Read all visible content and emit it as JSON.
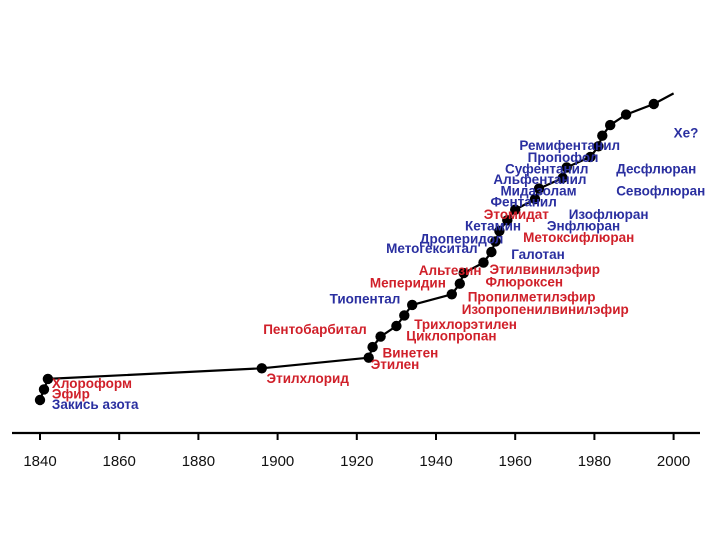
{
  "chart_data": {
    "type": "line",
    "title": "",
    "xlabel": "",
    "ylabel": "",
    "xlim": [
      1835,
      2003
    ],
    "ticks": [
      "1840",
      "1860",
      "1880",
      "1900",
      "1920",
      "1940",
      "1960",
      "1980",
      "2000"
    ],
    "tick_values": [
      1840,
      1860,
      1880,
      1900,
      1920,
      1940,
      1960,
      1980,
      2000
    ],
    "y_axis_shown": false,
    "grid": false,
    "legend": "none",
    "colors": {
      "red": "#d0202a",
      "blue": "#2a2fa0",
      "line": "#000000",
      "axis": "#000000"
    },
    "points": [
      {
        "x": 1840,
        "y": 1
      },
      {
        "x": 1841,
        "y": 2
      },
      {
        "x": 1842,
        "y": 3
      },
      {
        "x": 1896,
        "y": 4
      },
      {
        "x": 1923,
        "y": 5
      },
      {
        "x": 1924,
        "y": 6
      },
      {
        "x": 1926,
        "y": 7
      },
      {
        "x": 1930,
        "y": 8
      },
      {
        "x": 1932,
        "y": 9
      },
      {
        "x": 1934,
        "y": 10
      },
      {
        "x": 1944,
        "y": 11
      },
      {
        "x": 1946,
        "y": 12
      },
      {
        "x": 1947,
        "y": 13
      },
      {
        "x": 1952,
        "y": 14
      },
      {
        "x": 1954,
        "y": 15
      },
      {
        "x": 1955,
        "y": 16
      },
      {
        "x": 1956,
        "y": 17
      },
      {
        "x": 1958,
        "y": 18
      },
      {
        "x": 1960,
        "y": 19
      },
      {
        "x": 1965,
        "y": 20
      },
      {
        "x": 1966,
        "y": 21
      },
      {
        "x": 1972,
        "y": 22
      },
      {
        "x": 1973,
        "y": 23
      },
      {
        "x": 1979,
        "y": 24
      },
      {
        "x": 1981,
        "y": 25
      },
      {
        "x": 1982,
        "y": 26
      },
      {
        "x": 1984,
        "y": 27
      },
      {
        "x": 1988,
        "y": 28
      },
      {
        "x": 1995,
        "y": 29
      }
    ],
    "line_end": {
      "x": 2000,
      "y": 30
    },
    "labels": [
      {
        "text": "Хлороформ",
        "color": "red",
        "x": 1843,
        "y": 2.6,
        "anchor": "start"
      },
      {
        "text": "Эфир",
        "color": "red",
        "x": 1843,
        "y": 1.6,
        "anchor": "start"
      },
      {
        "text": "Закись азота",
        "color": "blue",
        "x": 1843,
        "y": 0.6,
        "anchor": "start"
      },
      {
        "text": "Этилхлорид",
        "color": "red",
        "x": 1918,
        "y": 3.1,
        "anchor": "end"
      },
      {
        "text": "Этилен",
        "color": "red",
        "x": 1923.5,
        "y": 4.4,
        "anchor": "start"
      },
      {
        "text": "Винетен",
        "color": "red",
        "x": 1926.5,
        "y": 5.5,
        "anchor": "start"
      },
      {
        "text": "Пентобарбитал",
        "color": "red",
        "x": 1922.5,
        "y": 7.7,
        "anchor": "end"
      },
      {
        "text": "Циклопропан",
        "color": "red",
        "x": 1932.5,
        "y": 7.1,
        "anchor": "start"
      },
      {
        "text": "Трихлорэтилен",
        "color": "red",
        "x": 1934.5,
        "y": 8.2,
        "anchor": "start"
      },
      {
        "text": "Тиопентал",
        "color": "blue",
        "x": 1931,
        "y": 10.6,
        "anchor": "end"
      },
      {
        "text": "Изопропенилвинилэфир",
        "color": "red",
        "x": 1946.5,
        "y": 9.6,
        "anchor": "start"
      },
      {
        "text": "Пропилметилэфир",
        "color": "red",
        "x": 1948,
        "y": 10.8,
        "anchor": "start"
      },
      {
        "text": "Меперидин",
        "color": "red",
        "x": 1942.5,
        "y": 12.1,
        "anchor": "end"
      },
      {
        "text": "Флюроксен",
        "color": "red",
        "x": 1952.5,
        "y": 12.2,
        "anchor": "start"
      },
      {
        "text": "Альтезин",
        "color": "red",
        "x": 1951.5,
        "y": 13.3,
        "anchor": "end"
      },
      {
        "text": "Этилвинилэфир",
        "color": "red",
        "x": 1953.5,
        "y": 13.4,
        "anchor": "start"
      },
      {
        "text": "Галотан",
        "color": "blue",
        "x": 1959,
        "y": 14.8,
        "anchor": "start"
      },
      {
        "text": "Метогекситал",
        "color": "blue",
        "x": 1950.5,
        "y": 15.4,
        "anchor": "end"
      },
      {
        "text": "Дроперидол",
        "color": "blue",
        "x": 1957,
        "y": 16.3,
        "anchor": "end"
      },
      {
        "text": "Метоксифлюран",
        "color": "red",
        "x": 1962,
        "y": 16.4,
        "anchor": "start"
      },
      {
        "text": "Кетамин",
        "color": "blue",
        "x": 1961.5,
        "y": 17.5,
        "anchor": "end"
      },
      {
        "text": "Энфлюран",
        "color": "blue",
        "x": 1968,
        "y": 17.5,
        "anchor": "start"
      },
      {
        "text": "Этомидат",
        "color": "red",
        "x": 1968.5,
        "y": 18.6,
        "anchor": "end"
      },
      {
        "text": "Изофлюран",
        "color": "blue",
        "x": 1973.5,
        "y": 18.6,
        "anchor": "start"
      },
      {
        "text": "Фентанил",
        "color": "blue",
        "x": 1970.5,
        "y": 19.8,
        "anchor": "end"
      },
      {
        "text": "Мидазолам",
        "color": "blue",
        "x": 1975.5,
        "y": 20.8,
        "anchor": "end"
      },
      {
        "text": "Севофлюран",
        "color": "blue",
        "x": 1985.5,
        "y": 20.8,
        "anchor": "start"
      },
      {
        "text": "Альфентанил",
        "color": "blue",
        "x": 1978,
        "y": 21.9,
        "anchor": "end"
      },
      {
        "text": "Суфентанил",
        "color": "blue",
        "x": 1978.5,
        "y": 22.9,
        "anchor": "end"
      },
      {
        "text": "Десфлюран",
        "color": "blue",
        "x": 1985.5,
        "y": 22.9,
        "anchor": "start"
      },
      {
        "text": "Пропофол",
        "color": "blue",
        "x": 1981,
        "y": 24.0,
        "anchor": "end"
      },
      {
        "text": "Ремифентанил",
        "color": "blue",
        "x": 1986.5,
        "y": 25.1,
        "anchor": "end"
      },
      {
        "text": "Xe?",
        "color": "blue",
        "x": 2000,
        "y": 26.3,
        "anchor": "start"
      }
    ]
  }
}
